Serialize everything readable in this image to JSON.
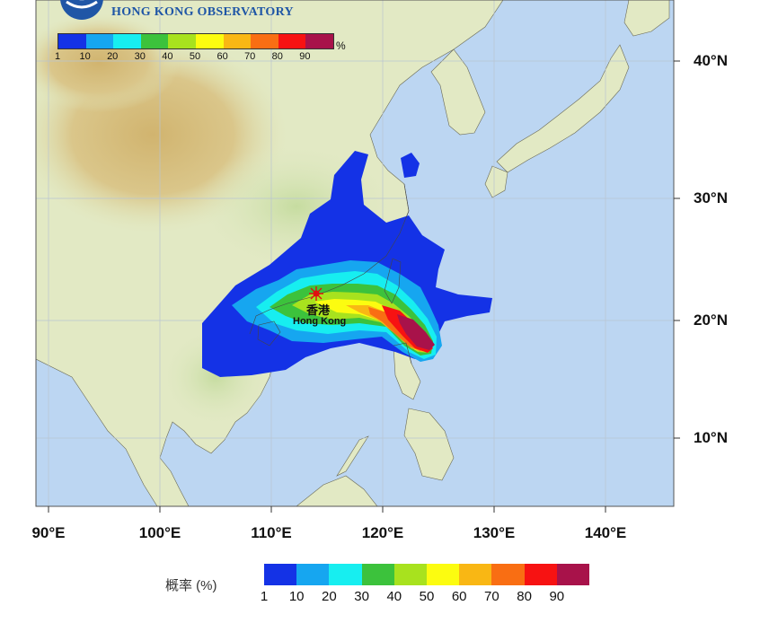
{
  "header": {
    "organization": "HONG KONG OBSERVATORY"
  },
  "latitude_labels": [
    "40°N",
    "30°N",
    "20°N",
    "10°N"
  ],
  "longitude_labels": [
    "90°E",
    "100°E",
    "110°E",
    "120°E",
    "130°E",
    "140°E"
  ],
  "location": {
    "name_zh": "香港",
    "name_en": "Hong Kong"
  },
  "legend": {
    "title": "概率 (%)",
    "unit_symbol": "%",
    "ticks": [
      "1",
      "10",
      "20",
      "30",
      "40",
      "50",
      "60",
      "70",
      "80",
      "90"
    ],
    "colors": [
      "#1432e6",
      "#16a6f0",
      "#17eef0",
      "#3cc23c",
      "#a8e21e",
      "#fcfc10",
      "#f9b714",
      "#f96e13",
      "#f71212",
      "#a8124a"
    ]
  },
  "map_colors": {
    "ocean": "#bcd6f2",
    "land_low": "#dfe8c2",
    "land_high": "#d4b878"
  }
}
